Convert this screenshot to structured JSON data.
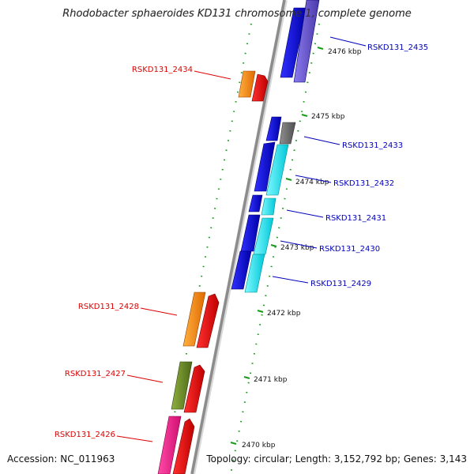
{
  "title": "Rhodobacter sphaeroides KD131 chromosome 1, complete genome",
  "accession": "Accession: NC_011963",
  "summary": "Topology: circular; Length: 3,152,792 bp; Genes: 3,143",
  "ticks": [
    "2476 kbp",
    "2475 kbp",
    "2474 kbp",
    "2473 kbp",
    "2472 kbp",
    "2471 kbp",
    "2470 kbp"
  ],
  "genes_left": [
    "RSKD131_2434",
    "RSKD131_2428",
    "RSKD131_2427",
    "RSKD131_2426"
  ],
  "genes_right": [
    "RSKD131_2435",
    "RSKD131_2433",
    "RSKD131_2432",
    "RSKD131_2431",
    "RSKD131_2430",
    "RSKD131_2429"
  ],
  "colors": {
    "backbone": "#8c8c8c",
    "tick": "#1a9a1a",
    "cds_blue": "#1010dd",
    "cds_cyan": "#00e5ee",
    "cds_orange": "#ff8800",
    "cds_red": "#ee0000",
    "cds_olive": "#6b8e23",
    "cds_magenta": "#ff1493",
    "cds_gray": "#707070",
    "cds_slate": "#6a5acd",
    "label_red": "#dd0000",
    "label_blue": "#0000bb"
  }
}
